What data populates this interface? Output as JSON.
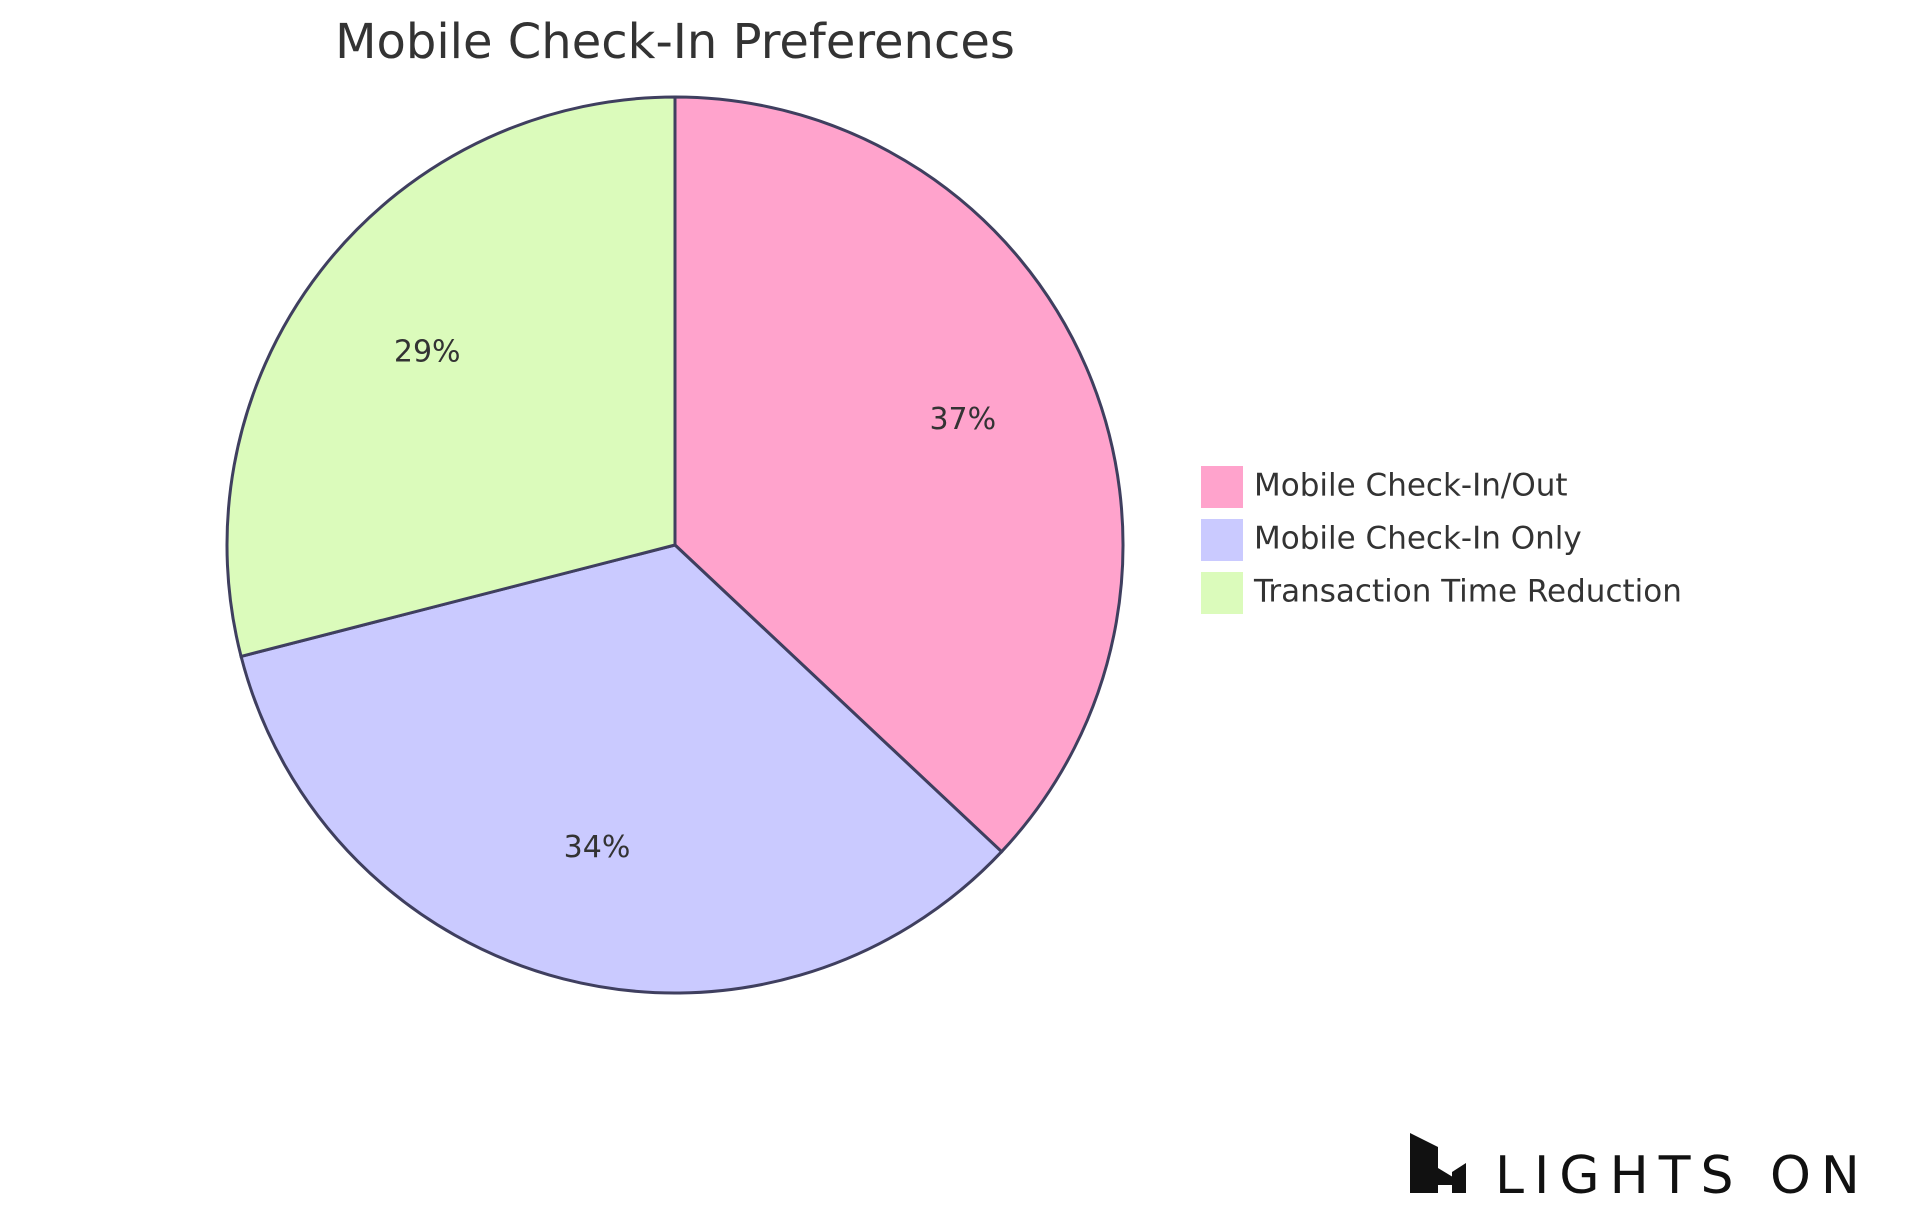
{
  "chart_data": {
    "type": "pie",
    "title": "Mobile Check-In Preferences",
    "slices": [
      {
        "label": "Mobile Check-In/Out",
        "value": 37,
        "display": "37%",
        "color": "#FFA3CC"
      },
      {
        "label": "Mobile Check-In Only",
        "value": 34,
        "display": "34%",
        "color": "#CACAFF"
      },
      {
        "label": "Transaction Time Reduction",
        "value": 29,
        "display": "29%",
        "color": "#DBFBBB"
      }
    ],
    "start": "12 o'clock",
    "direction": "clockwise",
    "legend_position": "right",
    "stroke_color": "#3F3F5F"
  },
  "brand": {
    "text": "LIGHTS ON",
    "logo_icon": "lights-on-logo-icon"
  }
}
